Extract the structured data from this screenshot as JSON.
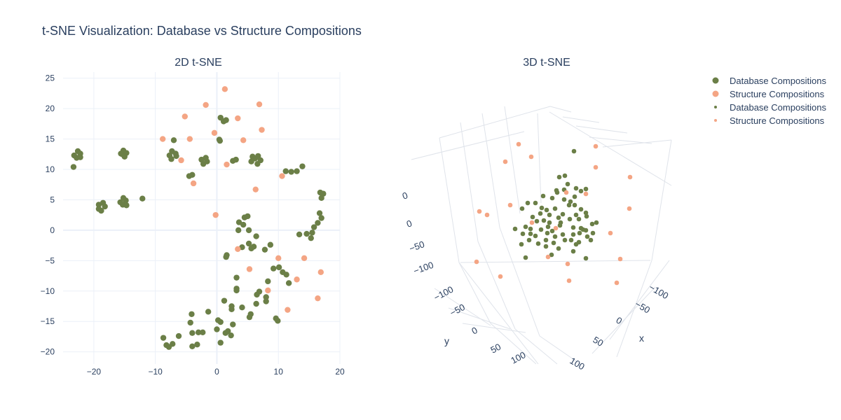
{
  "title": "t-SNE Visualization: Database vs Structure Compositions",
  "colors": {
    "database": "#6b7f47",
    "structure": "#f4a584",
    "grid": "#ebf0f8",
    "zeroline": "#ebf0f8",
    "axis_text": "#2a3f5f",
    "scene_grid": "#dfe3ea"
  },
  "chart_data": [
    {
      "type": "scatter",
      "title": "2D t-SNE",
      "xlabel": "",
      "ylabel": "",
      "xlim": [
        -25,
        20
      ],
      "ylim": [
        -22,
        26
      ],
      "xticks": [
        -20,
        -10,
        0,
        10,
        20
      ],
      "yticks": [
        -20,
        -15,
        -10,
        -5,
        0,
        5,
        10,
        15,
        20,
        25
      ],
      "grid": true,
      "series": [
        {
          "name": "Database Compositions",
          "color_key": "database",
          "points": [
            [
              -23.2,
              12.3
            ],
            [
              -22.6,
              13.0
            ],
            [
              -22.2,
              12.6
            ],
            [
              -22.8,
              11.9
            ],
            [
              -22.2,
              12.0
            ],
            [
              -23.3,
              10.4
            ],
            [
              -15.4,
              12.5
            ],
            [
              -15.2,
              13.1
            ],
            [
              -14.7,
              12.7
            ],
            [
              -15.0,
              12.1
            ],
            [
              -15.6,
              12.6
            ],
            [
              -19.2,
              4.2
            ],
            [
              -18.5,
              4.5
            ],
            [
              -19.2,
              3.5
            ],
            [
              -18.8,
              3.2
            ],
            [
              -18.2,
              3.9
            ],
            [
              -15.7,
              4.6
            ],
            [
              -15.2,
              5.3
            ],
            [
              -14.8,
              4.9
            ],
            [
              -15.3,
              4.2
            ],
            [
              -14.7,
              4.1
            ],
            [
              -12.1,
              5.2
            ],
            [
              -7.7,
              12.3
            ],
            [
              -7.3,
              13.0
            ],
            [
              -6.7,
              12.6
            ],
            [
              -7.4,
              11.7
            ],
            [
              -6.6,
              12.2
            ],
            [
              -7.0,
              14.8
            ],
            [
              -2.5,
              11.6
            ],
            [
              -2.2,
              10.9
            ],
            [
              -1.8,
              11.9
            ],
            [
              -1.6,
              11.3
            ],
            [
              -4.5,
              8.9
            ],
            [
              -4.0,
              9.1
            ],
            [
              0.6,
              18.5
            ],
            [
              1.1,
              17.9
            ],
            [
              1.5,
              18.1
            ],
            [
              0.4,
              14.9
            ],
            [
              0.5,
              14.7
            ],
            [
              2.6,
              11.4
            ],
            [
              3.1,
              11.6
            ],
            [
              5.6,
              11.3
            ],
            [
              5.8,
              12.1
            ],
            [
              6.2,
              11.8
            ],
            [
              6.7,
              12.2
            ],
            [
              7.1,
              11.5
            ],
            [
              6.6,
              10.9
            ],
            [
              11.2,
              9.7
            ],
            [
              12.1,
              9.6
            ],
            [
              13.0,
              9.7
            ],
            [
              13.9,
              10.5
            ],
            [
              16.8,
              6.2
            ],
            [
              17.3,
              6.0
            ],
            [
              17.0,
              5.3
            ],
            [
              16.7,
              2.8
            ],
            [
              17.0,
              2.0
            ],
            [
              16.4,
              1.2
            ],
            [
              15.8,
              0.5
            ],
            [
              15.5,
              -0.4
            ],
            [
              15.3,
              -1.3
            ],
            [
              13.4,
              -0.7
            ],
            [
              14.6,
              -0.6
            ],
            [
              3.6,
              1.3
            ],
            [
              4.3,
              0.9
            ],
            [
              4.5,
              2.1
            ],
            [
              5.0,
              2.3
            ],
            [
              3.5,
              0.0
            ],
            [
              5.2,
              0.0
            ],
            [
              6.4,
              -1.0
            ],
            [
              4.1,
              -2.8
            ],
            [
              5.2,
              -2.2
            ],
            [
              6.0,
              -2.7
            ],
            [
              5.6,
              -3.0
            ],
            [
              7.8,
              -3.2
            ],
            [
              8.7,
              -2.4
            ],
            [
              1.6,
              -4.1
            ],
            [
              1.5,
              -4.4
            ],
            [
              9.2,
              -6.3
            ],
            [
              10.1,
              -6.1
            ],
            [
              10.7,
              -6.9
            ],
            [
              11.3,
              -7.3
            ],
            [
              11.7,
              -8.7
            ],
            [
              8.3,
              -8.4
            ],
            [
              3.2,
              -7.8
            ],
            [
              3.2,
              -9.6
            ],
            [
              3.2,
              -9.9
            ],
            [
              6.5,
              -10.6
            ],
            [
              6.9,
              -10.1
            ],
            [
              8.0,
              -11.7
            ],
            [
              8.0,
              -11.0
            ],
            [
              1.2,
              -11.6
            ],
            [
              6.4,
              -12.1
            ],
            [
              2.4,
              -13.0
            ],
            [
              2.4,
              -12.5
            ],
            [
              4.1,
              -12.7
            ],
            [
              5.5,
              -13.8
            ],
            [
              5.3,
              -14.3
            ],
            [
              2.6,
              -15.5
            ],
            [
              0.2,
              -14.8
            ],
            [
              0.6,
              -15.1
            ],
            [
              1.8,
              -16.6
            ],
            [
              1.4,
              -16.9
            ],
            [
              2.3,
              -17.3
            ],
            [
              0.0,
              -16.3
            ],
            [
              0.6,
              -18.5
            ],
            [
              9.6,
              -14.5
            ],
            [
              9.9,
              -14.9
            ],
            [
              -1.4,
              -13.4
            ],
            [
              -4.1,
              -13.8
            ],
            [
              -4.3,
              -15.2
            ],
            [
              -3.0,
              -16.8
            ],
            [
              -2.3,
              -16.8
            ],
            [
              -4.0,
              -16.9
            ],
            [
              -6.2,
              -17.4
            ],
            [
              -8.7,
              -17.7
            ],
            [
              -8.2,
              -18.9
            ],
            [
              -7.8,
              -19.2
            ],
            [
              -7.2,
              -18.7
            ],
            [
              -4.0,
              -19.1
            ],
            [
              -3.2,
              -18.8
            ]
          ]
        },
        {
          "name": "Structure Compositions",
          "color_key": "structure",
          "points": [
            [
              1.3,
              23.2
            ],
            [
              -1.8,
              20.6
            ],
            [
              -5.2,
              18.7
            ],
            [
              6.9,
              20.7
            ],
            [
              3.4,
              18.4
            ],
            [
              -0.4,
              16.0
            ],
            [
              7.3,
              16.5
            ],
            [
              -8.8,
              15.0
            ],
            [
              -4.4,
              15.0
            ],
            [
              4.3,
              14.8
            ],
            [
              -5.8,
              11.5
            ],
            [
              1.6,
              10.8
            ],
            [
              -3.8,
              7.7
            ],
            [
              10.6,
              8.9
            ],
            [
              6.3,
              6.7
            ],
            [
              -0.2,
              2.5
            ],
            [
              3.4,
              -3.1
            ],
            [
              10.0,
              -4.6
            ],
            [
              14.2,
              -4.6
            ],
            [
              5.3,
              -6.4
            ],
            [
              16.9,
              -6.9
            ],
            [
              13.0,
              -8.1
            ],
            [
              8.3,
              -9.9
            ],
            [
              16.4,
              -11.2
            ],
            [
              11.5,
              -13.1
            ]
          ]
        }
      ]
    },
    {
      "type": "scatter",
      "title": "3D t-SNE",
      "xlabel": "x",
      "ylabel": "y",
      "zlabel": "",
      "xticks": [
        "100",
        "50",
        "0",
        "−50",
        "−100"
      ],
      "yticks": [
        "−100",
        "−50",
        "0",
        "50",
        "100"
      ],
      "zticks": [
        "0",
        "0",
        "−50",
        "−100"
      ],
      "series": [
        {
          "name": "Database Compositions",
          "color_key": "database",
          "points": [
            [
              819,
              216
            ],
            [
              798,
              253
            ],
            [
              806,
              251
            ],
            [
              794,
              272
            ],
            [
              822,
              269
            ],
            [
              829,
              273
            ],
            [
              810,
              263
            ],
            [
              805,
              271
            ],
            [
              820,
              281
            ],
            [
              836,
              270
            ],
            [
              775,
              280
            ],
            [
              795,
              275
            ],
            [
              788,
              283
            ],
            [
              814,
              288
            ],
            [
              753,
              290
            ],
            [
              764,
              290
            ],
            [
              745,
              298
            ],
            [
              773,
              297
            ],
            [
              780,
              300
            ],
            [
              792,
              298
            ],
            [
              812,
              293
            ],
            [
              820,
              293
            ],
            [
              829,
              299
            ],
            [
              836,
              304
            ],
            [
              771,
              305
            ],
            [
              784,
              307
            ],
            [
              803,
              306
            ],
            [
              822,
              307
            ],
            [
              837,
              309
            ],
            [
              760,
              310
            ],
            [
              797,
              311
            ],
            [
              813,
              313
            ],
            [
              826,
              313
            ],
            [
              845,
              320
            ],
            [
              851,
              318
            ],
            [
              784,
              318
            ],
            [
              766,
              316
            ],
            [
              750,
              324
            ],
            [
              735,
              327
            ],
            [
              757,
              327
            ],
            [
              772,
              328
            ],
            [
              782,
              324
            ],
            [
              799,
              322
            ],
            [
              818,
              325
            ],
            [
              829,
              326
            ],
            [
              836,
              329
            ],
            [
              746,
              334
            ],
            [
              757,
              334
            ],
            [
              764,
              337
            ],
            [
              781,
              333
            ],
            [
              792,
              338
            ],
            [
              803,
              335
            ],
            [
              818,
              335
            ],
            [
              827,
              333
            ],
            [
              846,
              333
            ],
            [
              838,
              338
            ],
            [
              755,
              343
            ],
            [
              779,
              343
            ],
            [
              790,
              347
            ],
            [
              806,
              343
            ],
            [
              815,
              343
            ],
            [
              826,
              346
            ],
            [
              843,
              343
            ],
            [
              744,
              349
            ],
            [
              768,
              348
            ],
            [
              779,
              352
            ],
            [
              797,
              355
            ],
            [
              822,
              349
            ],
            [
              818,
              359
            ],
            [
              750,
              368
            ],
            [
              787,
              364
            ],
            [
              836,
              369
            ],
            [
              832,
              328
            ],
            [
              776,
              315
            ],
            [
              805,
              285
            ],
            [
              800,
              318
            ],
            [
              788,
              330
            ]
          ]
        },
        {
          "name": "Structure Compositions",
          "color_key": "structure",
          "points": [
            [
              740,
              206
            ],
            [
              758,
              224
            ],
            [
              721,
              231
            ],
            [
              850,
              209
            ],
            [
              850,
              239
            ],
            [
              899,
              253
            ],
            [
              898,
              298
            ],
            [
              836,
              277
            ],
            [
              808,
              275
            ],
            [
              728,
              293
            ],
            [
              684,
              302
            ],
            [
              695,
              307
            ],
            [
              759,
              318
            ],
            [
              793,
              326
            ],
            [
              871,
              333
            ],
            [
              885,
              370
            ],
            [
              810,
              377
            ],
            [
              680,
              374
            ],
            [
              714,
              395
            ],
            [
              812,
              401
            ],
            [
              880,
              404
            ],
            [
              782,
              367
            ]
          ]
        }
      ]
    }
  ],
  "legend": {
    "placement": "top-right",
    "items": [
      {
        "label": "Database Compositions",
        "color_key": "database",
        "marker": "large"
      },
      {
        "label": "Structure Compositions",
        "color_key": "structure",
        "marker": "large"
      },
      {
        "label": "Database Compositions",
        "color_key": "database",
        "marker": "small"
      },
      {
        "label": "Structure Compositions",
        "color_key": "structure",
        "marker": "small"
      }
    ]
  }
}
